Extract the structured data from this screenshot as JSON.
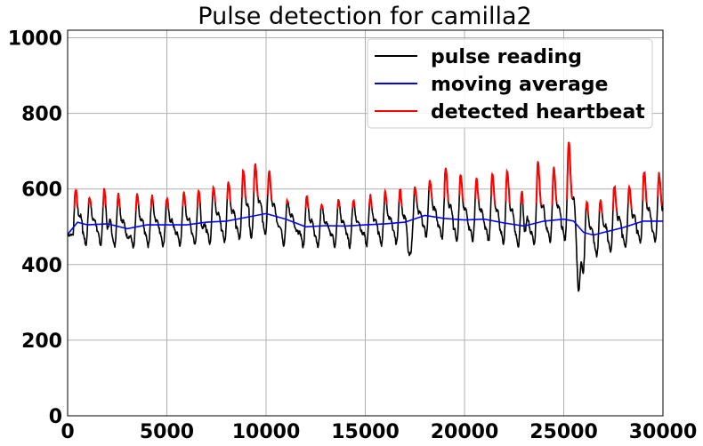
{
  "chart_data": {
    "type": "line",
    "title": "Pulse detection for camilla2",
    "xlabel": "",
    "ylabel": "",
    "xlim": [
      0,
      30000
    ],
    "ylim": [
      0,
      1020
    ],
    "x_ticks": [
      0,
      5000,
      10000,
      15000,
      20000,
      25000,
      30000
    ],
    "x_tick_labels": [
      "0",
      "5000",
      "10000",
      "15000",
      "20000",
      "25000",
      "30000"
    ],
    "y_ticks": [
      0,
      200,
      400,
      600,
      800,
      1000
    ],
    "y_tick_labels": [
      "0",
      "200",
      "400",
      "600",
      "800",
      "1000"
    ],
    "grid": true,
    "legend_position": "top-right",
    "colors": {
      "pulse": "#000000",
      "average": "#0000ff",
      "heartbeat": "#ff0000",
      "grid": "#b0b0b0"
    },
    "series": [
      {
        "name": "pulse reading",
        "color": "#000000",
        "peaks": [
          {
            "x": 400,
            "y": 598
          },
          {
            "x": 1100,
            "y": 580
          },
          {
            "x": 1850,
            "y": 606
          },
          {
            "x": 2550,
            "y": 586
          },
          {
            "x": 3500,
            "y": 583
          },
          {
            "x": 4250,
            "y": 580
          },
          {
            "x": 5000,
            "y": 575
          },
          {
            "x": 5850,
            "y": 588
          },
          {
            "x": 6600,
            "y": 600
          },
          {
            "x": 7350,
            "y": 607
          },
          {
            "x": 8100,
            "y": 620
          },
          {
            "x": 8850,
            "y": 650
          },
          {
            "x": 9450,
            "y": 667
          },
          {
            "x": 10150,
            "y": 645
          },
          {
            "x": 11050,
            "y": 600
          },
          {
            "x": 12050,
            "y": 580
          },
          {
            "x": 12800,
            "y": 560
          },
          {
            "x": 13650,
            "y": 570
          },
          {
            "x": 14400,
            "y": 570
          },
          {
            "x": 15250,
            "y": 582
          },
          {
            "x": 16000,
            "y": 590
          },
          {
            "x": 16750,
            "y": 595
          },
          {
            "x": 17500,
            "y": 603
          },
          {
            "x": 18250,
            "y": 625
          },
          {
            "x": 19050,
            "y": 655
          },
          {
            "x": 19800,
            "y": 635
          },
          {
            "x": 20600,
            "y": 625
          },
          {
            "x": 21400,
            "y": 638
          },
          {
            "x": 22150,
            "y": 650
          },
          {
            "x": 22900,
            "y": 620
          },
          {
            "x": 23700,
            "y": 670
          },
          {
            "x": 24500,
            "y": 655
          },
          {
            "x": 25250,
            "y": 725
          },
          {
            "x": 26150,
            "y": 570
          },
          {
            "x": 26850,
            "y": 570
          },
          {
            "x": 27550,
            "y": 610
          },
          {
            "x": 28300,
            "y": 605
          },
          {
            "x": 29050,
            "y": 645
          },
          {
            "x": 29800,
            "y": 640
          }
        ],
        "dips": [
          {
            "x": 25750,
            "y": 328
          },
          {
            "x": 17200,
            "y": 430
          },
          {
            "x": 23000,
            "y": 420
          },
          {
            "x": 26000,
            "y": 410
          },
          {
            "x": 2000,
            "y": 450
          },
          {
            "x": 6800,
            "y": 452
          },
          {
            "x": 11000,
            "y": 450
          }
        ]
      },
      {
        "name": "moving average",
        "color": "#0000ff",
        "x": [
          0,
          500,
          1000,
          2000,
          3000,
          4000,
          5000,
          6000,
          7000,
          8000,
          9000,
          10000,
          11000,
          12000,
          13000,
          14000,
          15000,
          16000,
          17000,
          18000,
          19000,
          20000,
          21000,
          22000,
          23000,
          24000,
          25000,
          25500,
          26000,
          26500,
          27000,
          28000,
          29000,
          30000
        ],
        "y": [
          480,
          512,
          505,
          508,
          495,
          505,
          505,
          505,
          512,
          515,
          525,
          535,
          520,
          500,
          503,
          502,
          505,
          508,
          512,
          530,
          522,
          518,
          520,
          510,
          502,
          515,
          520,
          515,
          485,
          478,
          485,
          498,
          515,
          515
        ]
      },
      {
        "name": "detected heartbeat",
        "color": "#ff0000",
        "threshold_series": "moving average"
      }
    ]
  }
}
